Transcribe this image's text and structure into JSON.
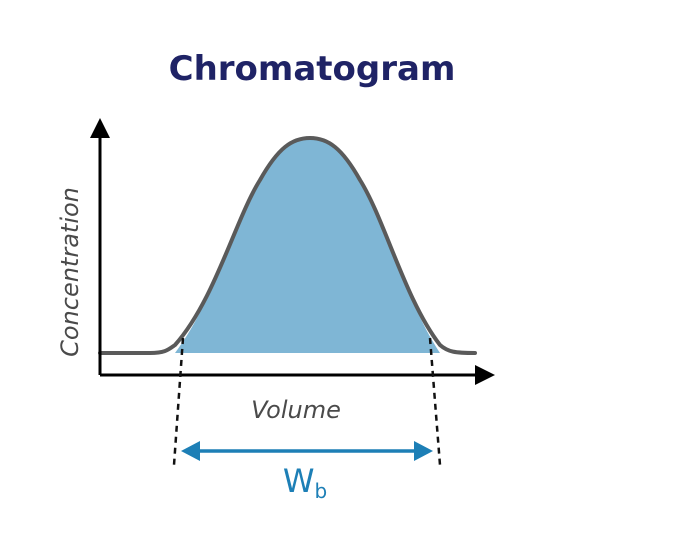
{
  "title": "Chromatogram",
  "y_axis_label": "Concentration",
  "x_axis_label": "Volume",
  "width_label": {
    "main": "W",
    "subscript": "b"
  },
  "colors": {
    "title": "#1f2366",
    "peak_fill": "#7fb6d5",
    "peak_outline": "#5a5a5a",
    "axis": "#000000",
    "width_arrow": "#1d7fb6",
    "label_text": "#4a4a4a"
  }
}
